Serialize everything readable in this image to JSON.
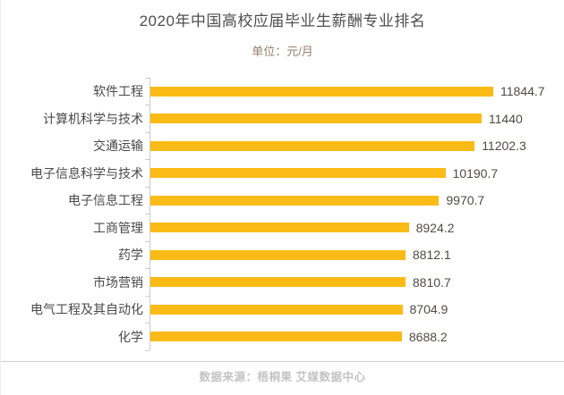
{
  "header": {
    "title": "2020年中国高校应届毕业生薪酬专业排名",
    "subtitle": "单位：元/月"
  },
  "footer": {
    "source_text": "数据来源：梧桐果 艾媒数据中心"
  },
  "colors": {
    "bar": "#FBBB16",
    "title": "#4F4F4F",
    "subtitle": "#97806C",
    "axis": "#CCCCCC",
    "label": "#4A4A4A",
    "value": "#4F4B45",
    "footer_text": "#C3C3C3",
    "separator": "#CFCFCF",
    "page_border": "#EDEDED"
  },
  "chart_data": {
    "type": "bar",
    "orientation": "horizontal",
    "title": "2020年中国高校应届毕业生薪酬专业排名",
    "unit_label": "单位：元/月",
    "categories": [
      "软件工程",
      "计算机科学与技术",
      "交通运输",
      "电子信息科学与技术",
      "电子信息工程",
      "工商管理",
      "药学",
      "市场营销",
      "电气工程及其自动化",
      "化学"
    ],
    "values": [
      11844.7,
      11440,
      11202.3,
      10190.7,
      9970.7,
      8924.2,
      8812.1,
      8810.7,
      8704.9,
      8688.2
    ],
    "xlim": [
      0,
      12250
    ],
    "grid": false,
    "value_labels_shown": true,
    "value_label_position": "right-of-bar",
    "source": "数据来源：梧桐果 艾媒数据中心"
  }
}
